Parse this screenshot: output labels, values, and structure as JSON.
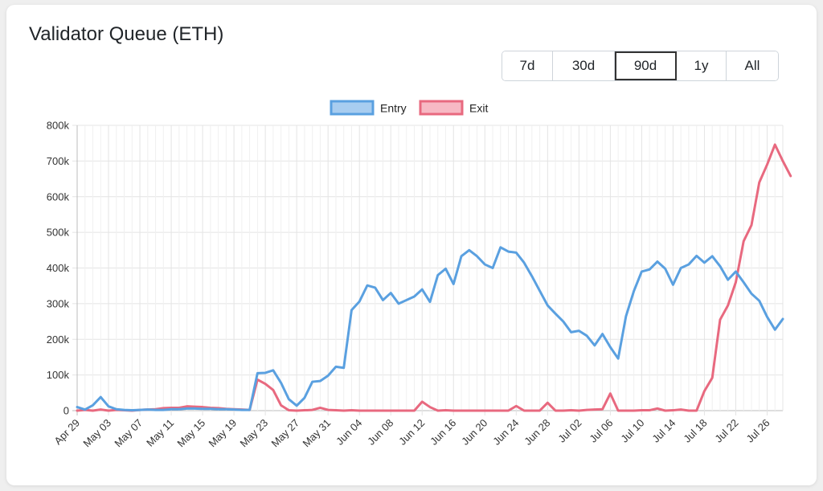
{
  "page": {
    "title": "Validator Queue (ETH)"
  },
  "range": {
    "options": [
      "7d",
      "30d",
      "90d",
      "1y",
      "All"
    ],
    "selected": "90d"
  },
  "legend": [
    {
      "label": "Entry",
      "color": "#5aa0e0",
      "fill": "#a8cdf0"
    },
    {
      "label": "Exit",
      "color": "#e8697f",
      "fill": "#f7b9c4"
    }
  ],
  "chart_data": {
    "type": "line",
    "ylim": [
      0,
      800000
    ],
    "yticks": [
      0,
      100000,
      200000,
      300000,
      400000,
      500000,
      600000,
      700000,
      800000
    ],
    "ytick_labels": [
      "0",
      "100k",
      "200k",
      "300k",
      "400k",
      "500k",
      "600k",
      "700k",
      "800k"
    ],
    "xtick_labels": [
      "Apr 29",
      "May 03",
      "May 07",
      "May 11",
      "May 15",
      "May 19",
      "May 23",
      "May 27",
      "May 31",
      "Jun 04",
      "Jun 08",
      "Jun 12",
      "Jun 16",
      "Jun 20",
      "Jun 24",
      "Jun 28",
      "Jul 02",
      "Jul 06",
      "Jul 10",
      "Jul 14",
      "Jul 18",
      "Jul 22",
      "Jul 26"
    ],
    "grid": true,
    "legend_position": "top",
    "x_start": "Apr 29",
    "x_end": "Jul 28",
    "series": [
      {
        "name": "Entry",
        "color": "#5aa0e0",
        "values": [
          10000,
          3000,
          15000,
          38000,
          12000,
          4000,
          2000,
          1000,
          2000,
          3000,
          2000,
          2000,
          4000,
          4000,
          6000,
          6000,
          5000,
          5000,
          4000,
          4000,
          3000,
          2000,
          2000,
          105000,
          106000,
          113000,
          78000,
          32000,
          14000,
          36000,
          81000,
          83000,
          98000,
          123000,
          120000,
          282000,
          306000,
          351000,
          345000,
          310000,
          330000,
          300000,
          310000,
          320000,
          340000,
          305000,
          380000,
          398000,
          355000,
          433000,
          450000,
          433000,
          410000,
          400000,
          458000,
          446000,
          443000,
          415000,
          377000,
          336000,
          295000,
          272000,
          250000,
          220000,
          224000,
          210000,
          183000,
          215000,
          178000,
          146000,
          265000,
          335000,
          390000,
          396000,
          418000,
          398000,
          353000,
          400000,
          410000,
          434000,
          415000,
          433000,
          405000,
          367000,
          390000,
          360000,
          328000,
          308000,
          263000,
          227000,
          257000
        ]
      },
      {
        "name": "Exit",
        "color": "#e8697f",
        "values": [
          0,
          2000,
          0,
          3000,
          0,
          2000,
          1000,
          0,
          2000,
          3000,
          4000,
          7000,
          8000,
          8000,
          12000,
          11000,
          10000,
          8000,
          7000,
          5000,
          4000,
          3000,
          2000,
          87000,
          75000,
          58000,
          15000,
          1000,
          0,
          1000,
          2000,
          8000,
          2000,
          1000,
          0,
          1000,
          0,
          0,
          0,
          0,
          0,
          0,
          0,
          0,
          25000,
          10000,
          0,
          1000,
          0,
          0,
          0,
          0,
          0,
          0,
          0,
          0,
          13000,
          0,
          0,
          0,
          22000,
          0,
          0,
          1000,
          0,
          2000,
          3000,
          4000,
          48000,
          0,
          0,
          0,
          1000,
          1000,
          6000,
          0,
          1000,
          3000,
          0,
          0,
          55000,
          92000,
          255000,
          295000,
          360000,
          475000,
          520000,
          640000,
          690000,
          746000,
          700000,
          658000
        ]
      }
    ]
  }
}
